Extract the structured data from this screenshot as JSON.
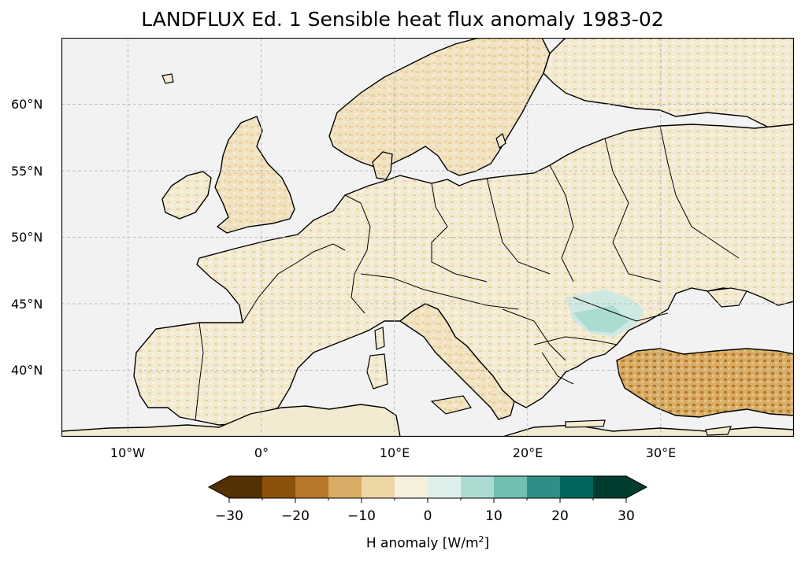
{
  "title": "LANDFLUX Ed. 1 Sensible heat flux anomaly 1983-02",
  "map": {
    "projection": "PlateCarree",
    "lon_range": [
      -15,
      40
    ],
    "lat_range": [
      35,
      65
    ],
    "gridlines": true,
    "colors": {
      "ocean": "#f2f2f2",
      "coastline": "#000000",
      "grid": "#b0b0b0"
    },
    "lat_ticks": [
      "60°N",
      "55°N",
      "50°N",
      "45°N",
      "40°N"
    ],
    "lon_ticks": [
      "10°W",
      "0°",
      "10°E",
      "20°E",
      "30°E"
    ]
  },
  "colorbar": {
    "label_prefix": "H anomaly [W/m",
    "label_sup": "2",
    "label_suffix": "]",
    "extend": "both",
    "tick_labels": [
      "−30",
      "−20",
      "−10",
      "0",
      "10",
      "20",
      "30"
    ],
    "levels": [
      -30,
      -25,
      -20,
      -15,
      -10,
      -5,
      0,
      5,
      10,
      15,
      20,
      25,
      30
    ],
    "colors": [
      "#543005",
      "#8c510a",
      "#b8772a",
      "#d7ac64",
      "#ecd6a4",
      "#f5efdc",
      "#dff0ec",
      "#aadcd2",
      "#6fbfb2",
      "#2f8f86",
      "#02665e",
      "#003c30"
    ]
  }
}
